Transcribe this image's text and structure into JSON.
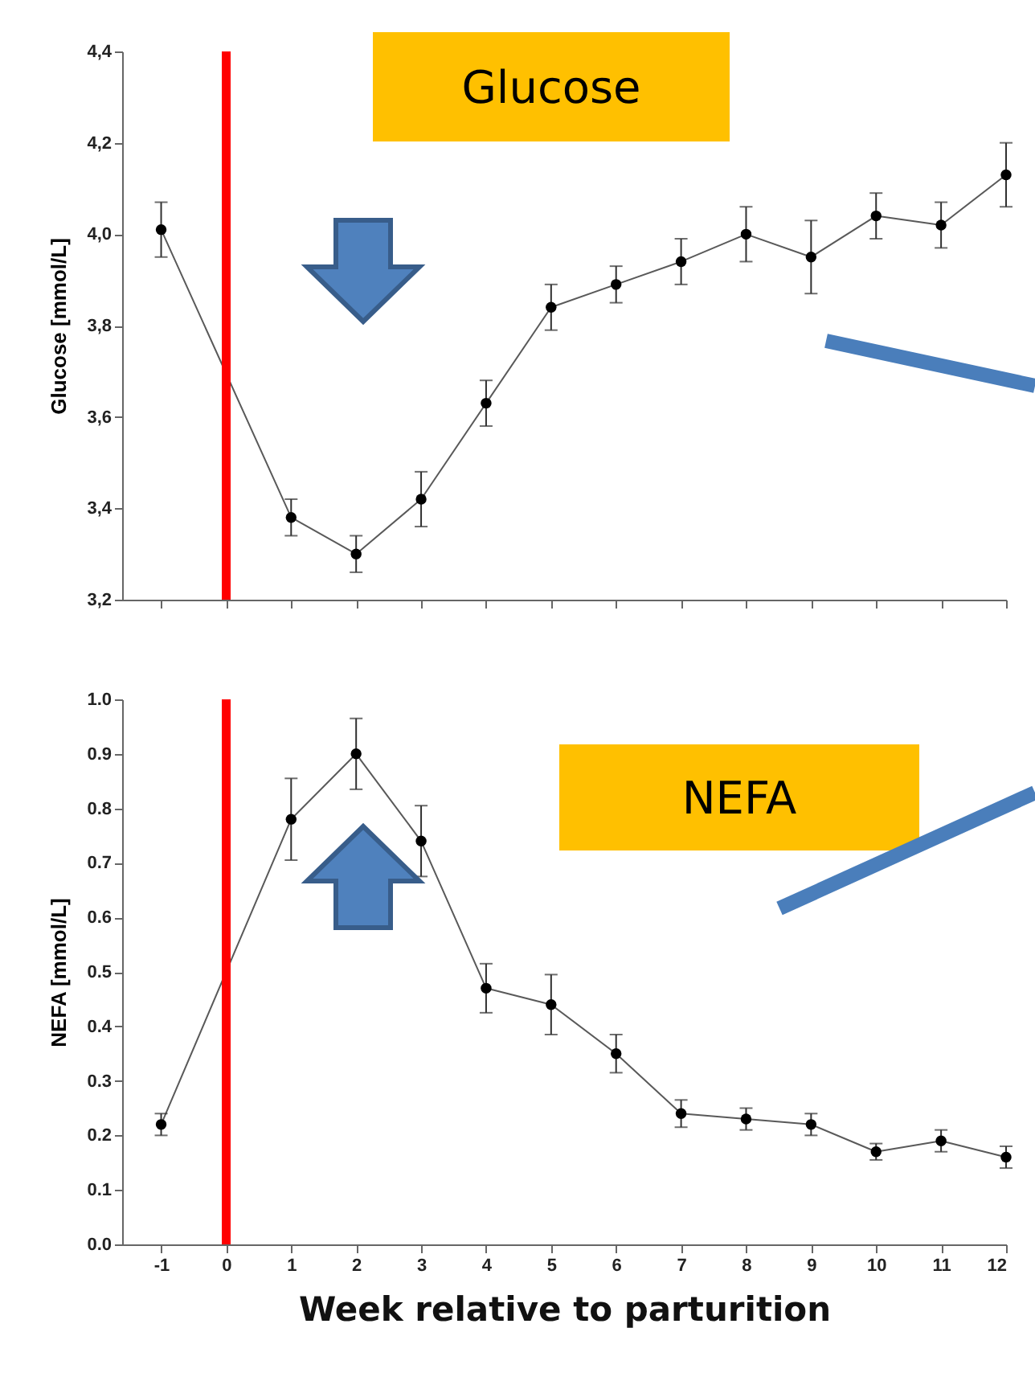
{
  "chart_data": [
    {
      "type": "line",
      "ylabel": "Glucose [mmol/L]",
      "x": [
        -1,
        1,
        2,
        3,
        4,
        5,
        6,
        7,
        8,
        9,
        10,
        11,
        12
      ],
      "values": [
        4.01,
        3.38,
        3.3,
        3.42,
        3.63,
        3.84,
        3.89,
        3.94,
        4.0,
        3.95,
        4.04,
        4.02,
        4.13
      ],
      "errors": [
        0.06,
        0.04,
        0.04,
        0.06,
        0.05,
        0.05,
        0.04,
        0.05,
        0.06,
        0.08,
        0.05,
        0.05,
        0.07
      ],
      "color": "#303030",
      "marker": "circle",
      "xlim": [
        -1.6,
        12
      ],
      "xticks": [
        -1,
        0,
        1,
        2,
        3,
        4,
        5,
        6,
        7,
        8,
        9,
        10,
        11,
        12
      ],
      "ylim": [
        3.2,
        4.4
      ],
      "yticks": [
        {
          "value": 3.2,
          "label": "3,2"
        },
        {
          "value": 3.4,
          "label": "3,4"
        },
        {
          "value": 3.6,
          "label": "3,6"
        },
        {
          "value": 3.8,
          "label": "3,8"
        },
        {
          "value": 4.0,
          "label": "4,0"
        },
        {
          "value": 4.2,
          "label": "4,2"
        },
        {
          "value": 4.4,
          "label": "4,4"
        }
      ],
      "tick_labels": "y",
      "ref_lines": [
        {
          "axis": "x",
          "value": 0,
          "color": "#ff0000"
        }
      ],
      "annotations": [
        "Glucose"
      ]
    },
    {
      "type": "line",
      "ylabel": "NEFA [mmol/L]",
      "xlabel": "Week relative to parturition",
      "x": [
        -1,
        1,
        2,
        3,
        4,
        5,
        6,
        7,
        8,
        9,
        10,
        11,
        12
      ],
      "values": [
        0.22,
        0.78,
        0.9,
        0.74,
        0.47,
        0.44,
        0.35,
        0.24,
        0.23,
        0.22,
        0.17,
        0.19,
        0.16
      ],
      "errors": [
        0.02,
        0.075,
        0.065,
        0.065,
        0.045,
        0.055,
        0.035,
        0.025,
        0.02,
        0.02,
        0.015,
        0.02,
        0.02
      ],
      "color": "#303030",
      "marker": "circle",
      "xlim": [
        -1.6,
        12
      ],
      "xticks": [
        -1,
        0,
        1,
        2,
        3,
        4,
        5,
        6,
        7,
        8,
        9,
        10,
        11,
        12
      ],
      "ylim": [
        0,
        1
      ],
      "yticks": [
        {
          "value": 0,
          "label": "0.0"
        },
        {
          "value": 0.1,
          "label": "0.1"
        },
        {
          "value": 0.2,
          "label": "0.2"
        },
        {
          "value": 0.3,
          "label": "0.3"
        },
        {
          "value": 0.4,
          "label": "0.4"
        },
        {
          "value": 0.5,
          "label": "0.5"
        },
        {
          "value": 0.6,
          "label": "0.6"
        },
        {
          "value": 0.7,
          "label": "0.7"
        },
        {
          "value": 0.8,
          "label": "0.8"
        },
        {
          "value": 0.9,
          "label": "0.9"
        },
        {
          "value": 1.0,
          "label": "1.0"
        }
      ],
      "ref_lines": [
        {
          "axis": "x",
          "value": 0,
          "color": "#ff0000"
        }
      ],
      "annotations": [
        "NEFA"
      ]
    }
  ]
}
